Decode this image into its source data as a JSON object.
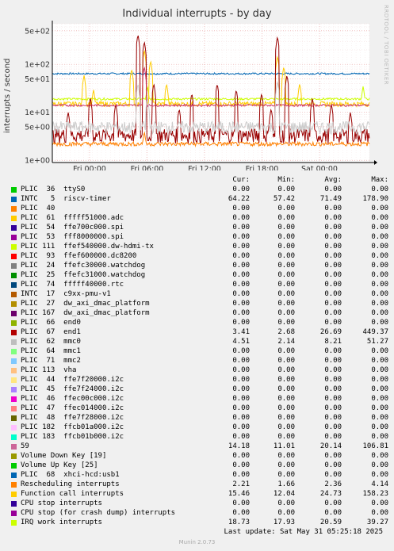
{
  "chart_data": {
    "type": "line",
    "title": "Individual interrupts - by day",
    "ylabel": "interrupts / second",
    "yscale": "log",
    "ylim": [
      0.9,
      700
    ],
    "y_ticks": [
      {
        "value": 1,
        "label": "1e+00"
      },
      {
        "value": 5,
        "label": "5e+00"
      },
      {
        "value": 10,
        "label": "1e+01"
      },
      {
        "value": 50,
        "label": "5e+01"
      },
      {
        "value": 100,
        "label": "1e+02"
      },
      {
        "value": 500,
        "label": "5e+02"
      }
    ],
    "x_ticks": [
      "Fri 00:00",
      "Fri 06:00",
      "Fri 12:00",
      "Fri 18:00",
      "Sat 00:00"
    ],
    "grid": true,
    "series_plotted": [
      {
        "name": "riscv-timer",
        "color": "#0066b3",
        "base": 64,
        "noise": 0.04,
        "spikes": []
      },
      {
        "name": "IRQ work interrupts",
        "color": "#ccff00",
        "base": 19,
        "noise": 0.05,
        "spikes": [
          [
            0.3,
            35
          ],
          [
            0.98,
            35
          ]
        ]
      },
      {
        "name": "Function call interrupts",
        "color": "#ffcc00",
        "base": 15,
        "noise": 0.12,
        "spikes": [
          [
            0.1,
            60
          ],
          [
            0.13,
            30
          ],
          [
            0.25,
            80
          ],
          [
            0.29,
            200
          ],
          [
            0.31,
            120
          ],
          [
            0.36,
            40
          ],
          [
            0.71,
            150
          ],
          [
            0.73,
            90
          ],
          [
            0.78,
            40
          ]
        ]
      },
      {
        "name": "end1",
        "color": "#990000",
        "base": 3.4,
        "noise": 0.35,
        "spikes": [
          [
            0.05,
            10
          ],
          [
            0.12,
            20
          ],
          [
            0.2,
            15
          ],
          [
            0.27,
            420
          ],
          [
            0.29,
            300
          ],
          [
            0.32,
            40
          ],
          [
            0.4,
            12
          ],
          [
            0.44,
            25
          ],
          [
            0.52,
            40
          ],
          [
            0.58,
            30
          ],
          [
            0.66,
            25
          ],
          [
            0.69,
            12
          ],
          [
            0.71,
            380
          ],
          [
            0.74,
            60
          ],
          [
            0.82,
            20
          ],
          [
            0.88,
            15
          ],
          [
            0.94,
            10
          ]
        ]
      },
      {
        "name": "59",
        "color": "#cc3366",
        "base": 14,
        "noise": 0.05,
        "spikes": [
          [
            0.29,
            90
          ]
        ]
      },
      {
        "name": "mmc0",
        "color": "#cccccc",
        "base": 5,
        "noise": 0.3,
        "spikes": [
          [
            0.27,
            40
          ],
          [
            0.3,
            20
          ],
          [
            0.71,
            45
          ]
        ]
      },
      {
        "name": "Rescheduling interrupts",
        "color": "#ff8000",
        "base": 2.2,
        "noise": 0.1,
        "spikes": [
          [
            0.29,
            4
          ]
        ]
      },
      {
        "name": "PLIC 40",
        "color": "#ff8000",
        "base": 0,
        "noise": 0,
        "spikes": []
      }
    ]
  },
  "legend": {
    "headers": {
      "cur": "Cur:",
      "min": "Min:",
      "avg": "Avg:",
      "max": "Max:"
    },
    "rows": [
      {
        "label": "PLIC  36  ttyS0",
        "color": "#00cc00",
        "cur": "0.00",
        "min": "0.00",
        "avg": "0.00",
        "max": "0.00"
      },
      {
        "label": "INTC   5  riscv-timer",
        "color": "#0066b3",
        "cur": "64.22",
        "min": "57.42",
        "avg": "71.49",
        "max": "178.90"
      },
      {
        "label": "PLIC  40",
        "color": "#ff8000",
        "cur": "0.00",
        "min": "0.00",
        "avg": "0.00",
        "max": "0.00"
      },
      {
        "label": "PLIC  61  fffff51000.adc",
        "color": "#ffcc00",
        "cur": "0.00",
        "min": "0.00",
        "avg": "0.00",
        "max": "0.00"
      },
      {
        "label": "PLIC  54  ffe700c000.spi",
        "color": "#330099",
        "cur": "0.00",
        "min": "0.00",
        "avg": "0.00",
        "max": "0.00"
      },
      {
        "label": "PLIC  53  fff8000000.spi",
        "color": "#990099",
        "cur": "0.00",
        "min": "0.00",
        "avg": "0.00",
        "max": "0.00"
      },
      {
        "label": "PLIC 111  ffef540000.dw-hdmi-tx",
        "color": "#ccff00",
        "cur": "0.00",
        "min": "0.00",
        "avg": "0.00",
        "max": "0.00"
      },
      {
        "label": "PLIC  93  ffef600000.dc8200",
        "color": "#ff0000",
        "cur": "0.00",
        "min": "0.00",
        "avg": "0.00",
        "max": "0.00"
      },
      {
        "label": "PLIC  24  ffefc30000.watchdog",
        "color": "#808080",
        "cur": "0.00",
        "min": "0.00",
        "avg": "0.00",
        "max": "0.00"
      },
      {
        "label": "PLIC  25  ffefc31000.watchdog",
        "color": "#008f00",
        "cur": "0.00",
        "min": "0.00",
        "avg": "0.00",
        "max": "0.00"
      },
      {
        "label": "PLIC  74  fffff40000.rtc",
        "color": "#00487d",
        "cur": "0.00",
        "min": "0.00",
        "avg": "0.00",
        "max": "0.00"
      },
      {
        "label": "INTC  17  c9xx-pmu-v1",
        "color": "#b35a00",
        "cur": "0.00",
        "min": "0.00",
        "avg": "0.00",
        "max": "0.00"
      },
      {
        "label": "PLIC  27  dw_axi_dmac_platform",
        "color": "#b38f00",
        "cur": "0.00",
        "min": "0.00",
        "avg": "0.00",
        "max": "0.00"
      },
      {
        "label": "PLIC 167  dw_axi_dmac_platform",
        "color": "#6b006b",
        "cur": "0.00",
        "min": "0.00",
        "avg": "0.00",
        "max": "0.00"
      },
      {
        "label": "PLIC  66  end0",
        "color": "#8fb300",
        "cur": "0.00",
        "min": "0.00",
        "avg": "0.00",
        "max": "0.00"
      },
      {
        "label": "PLIC  67  end1",
        "color": "#b30000",
        "cur": "3.41",
        "min": "2.68",
        "avg": "26.69",
        "max": "449.37"
      },
      {
        "label": "PLIC  62  mmc0",
        "color": "#bebebe",
        "cur": "4.51",
        "min": "2.14",
        "avg": "8.21",
        "max": "51.27"
      },
      {
        "label": "PLIC  64  mmc1",
        "color": "#80ff80",
        "cur": "0.00",
        "min": "0.00",
        "avg": "0.00",
        "max": "0.00"
      },
      {
        "label": "PLIC  71  mmc2",
        "color": "#80c9ff",
        "cur": "0.00",
        "min": "0.00",
        "avg": "0.00",
        "max": "0.00"
      },
      {
        "label": "PLIC 113  vha",
        "color": "#ffc080",
        "cur": "0.00",
        "min": "0.00",
        "avg": "0.00",
        "max": "0.00"
      },
      {
        "label": "PLIC  44  ffe7f20000.i2c",
        "color": "#ffe680",
        "cur": "0.00",
        "min": "0.00",
        "avg": "0.00",
        "max": "0.00"
      },
      {
        "label": "PLIC  45  ffe7f24000.i2c",
        "color": "#aa80ff",
        "cur": "0.00",
        "min": "0.00",
        "avg": "0.00",
        "max": "0.00"
      },
      {
        "label": "PLIC  46  ffec00c000.i2c",
        "color": "#ee00cc",
        "cur": "0.00",
        "min": "0.00",
        "avg": "0.00",
        "max": "0.00"
      },
      {
        "label": "PLIC  47  ffec014000.i2c",
        "color": "#ff8080",
        "cur": "0.00",
        "min": "0.00",
        "avg": "0.00",
        "max": "0.00"
      },
      {
        "label": "PLIC  48  ffe7f28000.i2c",
        "color": "#666600",
        "cur": "0.00",
        "min": "0.00",
        "avg": "0.00",
        "max": "0.00"
      },
      {
        "label": "PLIC 182  ffcb01a000.i2c",
        "color": "#ffbfff",
        "cur": "0.00",
        "min": "0.00",
        "avg": "0.00",
        "max": "0.00"
      },
      {
        "label": "PLIC 183  ffcb01b000.i2c",
        "color": "#00ffcc",
        "cur": "0.00",
        "min": "0.00",
        "avg": "0.00",
        "max": "0.00"
      },
      {
        "label": "59",
        "color": "#cc6699",
        "cur": "14.18",
        "min": "11.01",
        "avg": "20.14",
        "max": "106.81"
      },
      {
        "label": "Volume Down Key [19]",
        "color": "#999900",
        "cur": "0.00",
        "min": "0.00",
        "avg": "0.00",
        "max": "0.00"
      },
      {
        "label": "Volume Up Key [25]",
        "color": "#00cc00",
        "cur": "0.00",
        "min": "0.00",
        "avg": "0.00",
        "max": "0.00"
      },
      {
        "label": "PLIC  68  xhci-hcd:usb1",
        "color": "#0066b3",
        "cur": "0.00",
        "min": "0.00",
        "avg": "0.00",
        "max": "0.00"
      },
      {
        "label": "Rescheduling interrupts",
        "color": "#ff8000",
        "cur": "2.21",
        "min": "1.66",
        "avg": "2.36",
        "max": "4.14"
      },
      {
        "label": "Function call interrupts",
        "color": "#ffcc00",
        "cur": "15.46",
        "min": "12.04",
        "avg": "24.73",
        "max": "158.23"
      },
      {
        "label": "CPU stop interrupts",
        "color": "#330099",
        "cur": "0.00",
        "min": "0.00",
        "avg": "0.00",
        "max": "0.00"
      },
      {
        "label": "CPU stop (for crash dump) interrupts",
        "color": "#990099",
        "cur": "0.00",
        "min": "0.00",
        "avg": "0.00",
        "max": "0.00"
      },
      {
        "label": "IRQ work interrupts",
        "color": "#ccff00",
        "cur": "18.73",
        "min": "17.93",
        "avg": "20.59",
        "max": "39.27"
      }
    ]
  },
  "last_update": "Last update: Sat May 31 05:25:18 2025",
  "watermark": "RRDTOOL / TOBI OETIKER",
  "footer": "Munin 2.0.73"
}
